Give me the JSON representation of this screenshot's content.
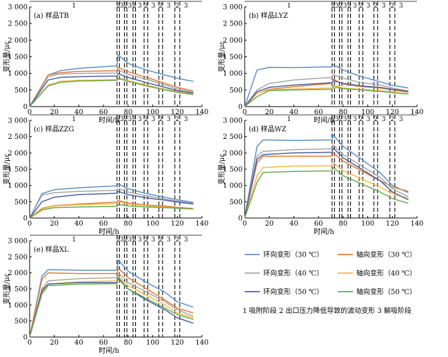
{
  "figure": {
    "legend_items": [
      {
        "name": "环向变形（30 ℃）",
        "color": "#5b8fc7"
      },
      {
        "name": "轴向变形（30 ℃）",
        "color": "#e07b39"
      },
      {
        "name": "环向变形（40 ℃）",
        "color": "#a5a5a5"
      },
      {
        "name": "轴向变形（40 ℃）",
        "color": "#f4b942"
      },
      {
        "name": "环向变形（50 ℃）",
        "color": "#4b5f9c"
      },
      {
        "name": "轴向变形（50 ℃）",
        "color": "#6aa84f"
      }
    ],
    "phase_note": "1 吸附阶段  2 出口压力降低导致的波动变形  3 解吸阶段",
    "phase_labels": [
      "1",
      "2",
      "3",
      "2",
      "3",
      "2",
      "3",
      "2",
      "3",
      "2",
      "3",
      "2",
      "3"
    ],
    "xlabel": "时间/h",
    "ylabel": "变形量/με"
  },
  "chart_data": [
    {
      "type": "line",
      "title": "(a) 样品TB",
      "xlabel": "时间/h",
      "ylabel": "变形量/με",
      "xlim": [
        0,
        140
      ],
      "ylim": [
        0,
        3000
      ],
      "x_ticks": [
        0,
        20,
        40,
        60,
        80,
        100,
        120,
        140
      ],
      "y_ticks": [
        0,
        500,
        1000,
        1500,
        2000,
        2500,
        3000
      ],
      "y_tick_labels": [
        "0",
        "500",
        "1 000",
        "1 500",
        "2 000",
        "2 500",
        "3 000"
      ],
      "series": [
        {
          "name": "环向变形（30 ℃）",
          "color": "#5b8fc7",
          "x": [
            0,
            15,
            25,
            40,
            71,
            72,
            80,
            95,
            110,
            120,
            133
          ],
          "y": [
            0,
            950,
            1080,
            1150,
            1230,
            1550,
            1300,
            1100,
            950,
            850,
            760
          ]
        },
        {
          "name": "轴向变形（30 ℃）",
          "color": "#e07b39",
          "x": [
            0,
            15,
            25,
            40,
            71,
            72,
            80,
            95,
            110,
            120,
            133
          ],
          "y": [
            0,
            950,
            1020,
            1060,
            1080,
            1180,
            1050,
            880,
            700,
            580,
            470
          ]
        },
        {
          "name": "环向变形（40 ℃）",
          "color": "#a5a5a5",
          "x": [
            0,
            15,
            25,
            40,
            71,
            72,
            80,
            95,
            110,
            120,
            133
          ],
          "y": [
            0,
            900,
            980,
            1000,
            1010,
            1100,
            970,
            820,
            650,
            530,
            440
          ]
        },
        {
          "name": "轴向变形（40 ℃）",
          "color": "#f4b942",
          "x": [
            0,
            15,
            25,
            40,
            71,
            72,
            80,
            95,
            110,
            120,
            133
          ],
          "y": [
            0,
            650,
            760,
            790,
            810,
            870,
            780,
            650,
            520,
            450,
            380
          ]
        },
        {
          "name": "环向变形（50 ℃）",
          "color": "#4b5f9c",
          "x": [
            0,
            15,
            25,
            40,
            71,
            72,
            80,
            95,
            110,
            120,
            133
          ],
          "y": [
            0,
            800,
            880,
            900,
            920,
            990,
            880,
            720,
            580,
            480,
            410
          ]
        },
        {
          "name": "轴向变形（50 ℃）",
          "color": "#6aa84f",
          "x": [
            0,
            15,
            25,
            40,
            71,
            72,
            80,
            95,
            110,
            120,
            133
          ],
          "y": [
            0,
            620,
            730,
            770,
            790,
            850,
            760,
            620,
            500,
            430,
            360
          ]
        }
      ]
    },
    {
      "type": "line",
      "title": "(b) 样品LYZ",
      "xlabel": "时间/h",
      "ylabel": "变形量/με",
      "xlim": [
        0,
        140
      ],
      "ylim": [
        0,
        3000
      ],
      "x_ticks": [
        0,
        20,
        40,
        60,
        80,
        100,
        120,
        140
      ],
      "y_ticks": [
        0,
        500,
        1000,
        1500,
        2000,
        2500,
        3000
      ],
      "y_tick_labels": [
        "0",
        "500",
        "1 000",
        "1 500",
        "2 000",
        "2 500",
        "3 000"
      ],
      "series": [
        {
          "name": "环向变形（30 ℃）",
          "color": "#5b8fc7",
          "x": [
            0,
            10,
            20,
            40,
            71,
            72,
            80,
            95,
            110,
            120,
            133
          ],
          "y": [
            0,
            1100,
            1180,
            1170,
            1200,
            1270,
            1100,
            900,
            750,
            640,
            560
          ]
        },
        {
          "name": "轴向变形（30 ℃）",
          "color": "#e07b39",
          "x": [
            0,
            10,
            20,
            40,
            71,
            72,
            80,
            95,
            110,
            120,
            133
          ],
          "y": [
            0,
            400,
            520,
            600,
            700,
            820,
            680,
            600,
            560,
            500,
            440
          ]
        },
        {
          "name": "环向变形（40 ℃）",
          "color": "#a5a5a5",
          "x": [
            0,
            10,
            20,
            40,
            71,
            72,
            80,
            95,
            110,
            120,
            133
          ],
          "y": [
            0,
            500,
            700,
            800,
            880,
            960,
            850,
            720,
            650,
            560,
            470
          ]
        },
        {
          "name": "轴向变形（40 ℃）",
          "color": "#f4b942",
          "x": [
            0,
            10,
            20,
            40,
            71,
            72,
            80,
            95,
            110,
            120,
            133
          ],
          "y": [
            0,
            400,
            500,
            530,
            560,
            650,
            560,
            520,
            480,
            440,
            390
          ]
        },
        {
          "name": "环向变形（50 ℃）",
          "color": "#4b5f9c",
          "x": [
            0,
            10,
            20,
            40,
            71,
            72,
            80,
            95,
            110,
            120,
            133
          ],
          "y": [
            0,
            450,
            580,
            650,
            720,
            780,
            700,
            620,
            580,
            520,
            460
          ]
        },
        {
          "name": "轴向变形（50 ℃）",
          "color": "#6aa84f",
          "x": [
            0,
            10,
            20,
            40,
            71,
            72,
            80,
            95,
            110,
            120,
            133
          ],
          "y": [
            0,
            300,
            480,
            500,
            520,
            600,
            540,
            500,
            460,
            420,
            380
          ]
        }
      ]
    },
    {
      "type": "line",
      "title": "(c) 样品ZZG",
      "xlabel": "时间/h",
      "ylabel": "变形量/με",
      "xlim": [
        0,
        140
      ],
      "ylim": [
        0,
        3000
      ],
      "x_ticks": [
        0,
        20,
        40,
        60,
        80,
        100,
        120,
        140
      ],
      "y_ticks": [
        0,
        500,
        1000,
        1500,
        2000,
        2500,
        3000
      ],
      "y_tick_labels": [
        "0",
        "500",
        "1 000",
        "1 500",
        "2 000",
        "2 500",
        "3 000"
      ],
      "series": [
        {
          "name": "环向变形（30 ℃）",
          "color": "#5b8fc7",
          "x": [
            0,
            10,
            20,
            40,
            71,
            72,
            80,
            95,
            110,
            120,
            133
          ],
          "y": [
            0,
            750,
            870,
            930,
            990,
            1050,
            900,
            750,
            640,
            560,
            480
          ]
        },
        {
          "name": "轴向变形（30 ℃）",
          "color": "#e07b39",
          "x": [
            0,
            10,
            20,
            40,
            71,
            72,
            80,
            95,
            110,
            120,
            133
          ],
          "y": [
            0,
            300,
            380,
            430,
            490,
            540,
            460,
            400,
            370,
            330,
            290
          ]
        },
        {
          "name": "环向变形（40 ℃）",
          "color": "#a5a5a5",
          "x": [
            0,
            10,
            20,
            40,
            71,
            72,
            80,
            95,
            110,
            120,
            133
          ],
          "y": [
            0,
            700,
            780,
            820,
            850,
            900,
            800,
            680,
            590,
            520,
            450
          ]
        },
        {
          "name": "轴向变形（40 ℃）",
          "color": "#f4b942",
          "x": [
            0,
            10,
            20,
            40,
            71,
            72,
            80,
            95,
            110,
            120,
            133
          ],
          "y": [
            0,
            280,
            370,
            410,
            440,
            500,
            430,
            380,
            340,
            300,
            270
          ]
        },
        {
          "name": "环向变形（50 ℃）",
          "color": "#4b5f9c",
          "x": [
            0,
            10,
            20,
            40,
            71,
            72,
            80,
            95,
            110,
            120,
            133
          ],
          "y": [
            0,
            500,
            640,
            720,
            760,
            820,
            720,
            620,
            550,
            490,
            430
          ]
        },
        {
          "name": "轴向变形（50 ℃）",
          "color": "#6aa84f",
          "x": [
            0,
            10,
            20,
            40,
            71,
            72,
            80,
            95,
            110,
            120,
            133
          ],
          "y": [
            0,
            250,
            320,
            340,
            360,
            420,
            370,
            340,
            320,
            300,
            290
          ]
        }
      ]
    },
    {
      "type": "line",
      "title": "(d) 样品WZ",
      "xlabel": "时间/h",
      "ylabel": "变形量/με",
      "xlim": [
        0,
        140
      ],
      "ylim": [
        0,
        3000
      ],
      "x_ticks": [
        0,
        20,
        40,
        60,
        80,
        100,
        120,
        140
      ],
      "y_ticks": [
        0,
        500,
        1000,
        1500,
        2000,
        2500,
        3000
      ],
      "y_tick_labels": [
        "0",
        "500",
        "1 000",
        "1 500",
        "2 000",
        "2 500",
        "3 000"
      ],
      "series": [
        {
          "name": "环向变形（30 ℃）",
          "color": "#5b8fc7",
          "x": [
            0,
            10,
            15,
            40,
            71,
            72,
            80,
            95,
            110,
            120,
            133
          ],
          "y": [
            0,
            2200,
            2400,
            2380,
            2400,
            2550,
            2200,
            1800,
            1400,
            1000,
            780
          ]
        },
        {
          "name": "轴向变形（30 ℃）",
          "color": "#e07b39",
          "x": [
            0,
            10,
            15,
            40,
            71,
            72,
            80,
            95,
            110,
            120,
            133
          ],
          "y": [
            0,
            1700,
            1900,
            1900,
            1900,
            2000,
            1750,
            1450,
            1150,
            950,
            820
          ]
        },
        {
          "name": "环向变形（40 ℃）",
          "color": "#a5a5a5",
          "x": [
            0,
            10,
            15,
            40,
            71,
            72,
            80,
            95,
            110,
            120,
            133
          ],
          "y": [
            0,
            1900,
            2050,
            2100,
            2130,
            2250,
            1950,
            1600,
            1250,
            900,
            650
          ]
        },
        {
          "name": "轴向变形（40 ℃）",
          "color": "#f4b942",
          "x": [
            0,
            10,
            15,
            40,
            71,
            72,
            80,
            95,
            110,
            120,
            133
          ],
          "y": [
            0,
            1300,
            1550,
            1600,
            1600,
            1700,
            1450,
            1200,
            950,
            750,
            600
          ]
        },
        {
          "name": "环向变形（50 ℃）",
          "color": "#4b5f9c",
          "x": [
            0,
            10,
            15,
            40,
            71,
            72,
            80,
            95,
            110,
            120,
            133
          ],
          "y": [
            0,
            1800,
            1950,
            2000,
            2020,
            2150,
            1850,
            1500,
            1150,
            800,
            560
          ]
        },
        {
          "name": "轴向变形（50 ℃）",
          "color": "#6aa84f",
          "x": [
            0,
            10,
            15,
            40,
            71,
            72,
            80,
            95,
            110,
            120,
            133
          ],
          "y": [
            0,
            1100,
            1400,
            1430,
            1450,
            1550,
            1300,
            1050,
            800,
            600,
            450
          ]
        }
      ]
    },
    {
      "type": "line",
      "title": "(e) 样品XL",
      "xlabel": "时间/h",
      "ylabel": "变形量/με",
      "xlim": [
        0,
        140
      ],
      "ylim": [
        0,
        3000
      ],
      "x_ticks": [
        0,
        20,
        40,
        60,
        80,
        100,
        120,
        140
      ],
      "y_ticks": [
        0,
        500,
        1000,
        1500,
        2000,
        2500,
        3000
      ],
      "y_tick_labels": [
        "0",
        "500",
        "1 000",
        "1 500",
        "2 000",
        "2 500",
        "3 000"
      ],
      "series": [
        {
          "name": "环向变形（30 ℃）",
          "color": "#5b8fc7",
          "x": [
            0,
            10,
            15,
            40,
            71,
            72,
            80,
            95,
            110,
            120,
            133
          ],
          "y": [
            0,
            1900,
            2100,
            2080,
            2080,
            2400,
            2050,
            1700,
            1400,
            1100,
            930
          ]
        },
        {
          "name": "轴向变形（30 ℃）",
          "color": "#e07b39",
          "x": [
            0,
            10,
            15,
            40,
            71,
            72,
            80,
            95,
            110,
            120,
            133
          ],
          "y": [
            0,
            1800,
            2000,
            1980,
            1980,
            2150,
            1850,
            1500,
            1150,
            900,
            750
          ]
        },
        {
          "name": "环向变形（40 ℃）",
          "color": "#a5a5a5",
          "x": [
            0,
            10,
            15,
            40,
            71,
            72,
            80,
            95,
            110,
            120,
            133
          ],
          "y": [
            0,
            1500,
            1750,
            1820,
            1850,
            2000,
            1700,
            1400,
            1100,
            850,
            650
          ]
        },
        {
          "name": "轴向变形（40 ℃）",
          "color": "#f4b942",
          "x": [
            0,
            10,
            15,
            40,
            71,
            72,
            80,
            95,
            110,
            120,
            133
          ],
          "y": [
            0,
            1400,
            1650,
            1720,
            1750,
            1900,
            1600,
            1300,
            1000,
            750,
            600
          ]
        },
        {
          "name": "环向变形（50 ℃）",
          "color": "#4b5f9c",
          "x": [
            0,
            10,
            15,
            40,
            71,
            72,
            80,
            95,
            110,
            120,
            133
          ],
          "y": [
            0,
            1450,
            1650,
            1700,
            1700,
            1850,
            1500,
            1150,
            850,
            600,
            430
          ]
        },
        {
          "name": "轴向变形（50 ℃）",
          "color": "#6aa84f",
          "x": [
            0,
            10,
            15,
            40,
            71,
            72,
            80,
            95,
            110,
            120,
            133
          ],
          "y": [
            0,
            1350,
            1600,
            1650,
            1660,
            1800,
            1500,
            1200,
            900,
            700,
            550
          ]
        }
      ]
    }
  ]
}
